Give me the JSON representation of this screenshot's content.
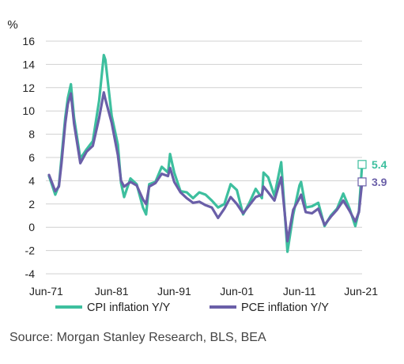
{
  "chart_data": {
    "type": "line",
    "title": "",
    "ylabel": "%",
    "xlabel": "",
    "ylim": [
      -4,
      16
    ],
    "yticks": [
      16,
      14,
      12,
      10,
      8,
      6,
      4,
      2,
      0,
      -2,
      -4
    ],
    "xticks": [
      "Jun-71",
      "Jun-81",
      "Jun-91",
      "Jun-01",
      "Jun-11",
      "Jun-21"
    ],
    "xrange": [
      "1971-06",
      "2021-06"
    ],
    "grid": "horizontal",
    "legend_position": "bottom",
    "series": [
      {
        "name": "CPI inflation Y/Y",
        "color": "#3dbf9e",
        "end_label": "5.4",
        "x": [
          "1971-06",
          "1972-06",
          "1973-01",
          "1973-06",
          "1974-01",
          "1974-06",
          "1974-12",
          "1975-06",
          "1976-06",
          "1977-06",
          "1978-06",
          "1979-06",
          "1980-03",
          "1980-06",
          "1981-06",
          "1982-06",
          "1982-12",
          "1983-06",
          "1984-06",
          "1985-06",
          "1986-06",
          "1986-12",
          "1987-06",
          "1988-06",
          "1989-06",
          "1990-06",
          "1990-10",
          "1991-06",
          "1992-06",
          "1993-06",
          "1994-06",
          "1995-06",
          "1996-06",
          "1997-06",
          "1998-06",
          "1999-06",
          "2000-06",
          "2001-06",
          "2002-06",
          "2003-06",
          "2004-06",
          "2005-06",
          "2005-09",
          "2006-06",
          "2007-06",
          "2008-07",
          "2009-07",
          "2010-06",
          "2011-06",
          "2011-09",
          "2012-06",
          "2013-06",
          "2014-06",
          "2015-06",
          "2016-06",
          "2017-06",
          "2018-06",
          "2019-06",
          "2020-05",
          "2020-12",
          "2021-06"
        ],
        "values": [
          4.4,
          2.8,
          3.6,
          6.0,
          9.4,
          11.1,
          12.3,
          9.4,
          5.9,
          6.7,
          7.4,
          10.9,
          14.8,
          14.4,
          9.6,
          7.1,
          3.8,
          2.6,
          4.2,
          3.7,
          1.7,
          1.1,
          3.7,
          3.9,
          5.2,
          4.7,
          6.3,
          4.7,
          3.1,
          3.0,
          2.5,
          3.0,
          2.8,
          2.3,
          1.7,
          2.0,
          3.7,
          3.2,
          1.1,
          2.1,
          3.3,
          2.5,
          4.7,
          4.3,
          2.7,
          5.6,
          -2.1,
          1.1,
          3.6,
          3.9,
          1.7,
          1.8,
          2.1,
          0.1,
          1.0,
          1.6,
          2.9,
          1.6,
          0.1,
          1.4,
          5.4
        ]
      },
      {
        "name": "PCE inflation Y/Y",
        "color": "#6a5fa8",
        "end_label": "3.9",
        "x": [
          "1971-06",
          "1972-06",
          "1973-01",
          "1973-06",
          "1974-01",
          "1974-06",
          "1974-12",
          "1975-06",
          "1976-06",
          "1977-06",
          "1978-06",
          "1979-06",
          "1980-03",
          "1980-06",
          "1981-06",
          "1982-06",
          "1982-12",
          "1983-06",
          "1984-06",
          "1985-06",
          "1986-06",
          "1986-12",
          "1987-06",
          "1988-06",
          "1989-06",
          "1990-06",
          "1990-10",
          "1991-06",
          "1992-06",
          "1993-06",
          "1994-06",
          "1995-06",
          "1996-06",
          "1997-06",
          "1998-06",
          "1999-06",
          "2000-06",
          "2001-06",
          "2002-06",
          "2003-06",
          "2004-06",
          "2005-06",
          "2005-09",
          "2006-06",
          "2007-06",
          "2008-07",
          "2009-07",
          "2010-06",
          "2011-06",
          "2011-09",
          "2012-06",
          "2013-06",
          "2014-06",
          "2015-06",
          "2016-06",
          "2017-06",
          "2018-06",
          "2019-06",
          "2020-05",
          "2020-12",
          "2021-06"
        ],
        "values": [
          4.5,
          3.1,
          3.5,
          5.5,
          8.9,
          10.6,
          11.5,
          8.9,
          5.5,
          6.5,
          7.0,
          9.4,
          11.6,
          11.0,
          9.0,
          6.2,
          4.0,
          3.5,
          3.9,
          3.6,
          2.4,
          2.0,
          3.5,
          3.8,
          4.6,
          4.4,
          5.1,
          3.9,
          3.0,
          2.5,
          2.1,
          2.2,
          1.9,
          1.7,
          0.8,
          1.6,
          2.6,
          2.0,
          1.2,
          1.9,
          2.6,
          2.8,
          3.5,
          3.0,
          2.3,
          4.3,
          -1.2,
          1.5,
          2.5,
          2.8,
          1.3,
          1.2,
          1.6,
          0.2,
          0.9,
          1.5,
          2.3,
          1.4,
          0.5,
          1.3,
          3.9
        ]
      }
    ]
  },
  "source_text": "Source: Morgan Stanley Research, BLS, BEA"
}
